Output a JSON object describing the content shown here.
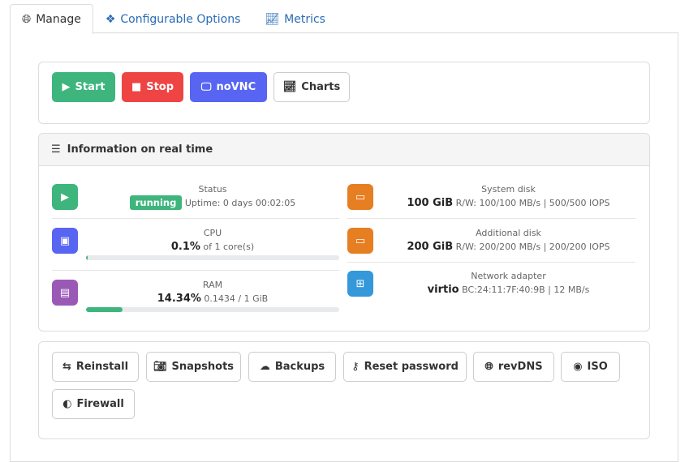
{
  "tabs": [
    {
      "label": "Manage",
      "icon": "globe-icon",
      "active": true
    },
    {
      "label": "Configurable Options",
      "icon": "cubes-icon"
    },
    {
      "label": "Metrics",
      "icon": "chart-line-icon"
    }
  ],
  "actions": {
    "start": "Start",
    "stop": "Stop",
    "novnc": "noVNC",
    "charts": "Charts"
  },
  "colors": {
    "green": "#3eb57d",
    "red": "#ef4444",
    "blue": "#5865f2",
    "orange": "#e67e22",
    "purple": "#9b59b6",
    "netblue": "#3498db"
  },
  "info": {
    "title": "Information on real time",
    "status": {
      "label": "Status",
      "badge": "running",
      "uptime": "Uptime: 0 days 00:02:05"
    },
    "cpu": {
      "label": "CPU",
      "value": "0.1%",
      "detail": "of 1 core(s)",
      "percent": 0.1
    },
    "ram": {
      "label": "RAM",
      "value": "14.34%",
      "detail": "0.1434 / 1 GiB",
      "percent": 14.34
    },
    "system_disk": {
      "label": "System disk",
      "value": "100 GiB",
      "detail": "R/W: 100/100 MB/s | 500/500 IOPS"
    },
    "additional_disk": {
      "label": "Additional disk",
      "value": "200 GiB",
      "detail": "R/W: 200/200 MB/s | 200/200 IOPS"
    },
    "network": {
      "label": "Network adapter",
      "value": "virtio",
      "detail": "BC:24:11:7F:40:9B | 12 MB/s"
    }
  },
  "tools": {
    "reinstall": "Reinstall",
    "snapshots": "Snapshots",
    "backups": "Backups",
    "reset_password": "Reset password",
    "revdns": "revDNS",
    "iso": "ISO",
    "firewall": "Firewall"
  }
}
